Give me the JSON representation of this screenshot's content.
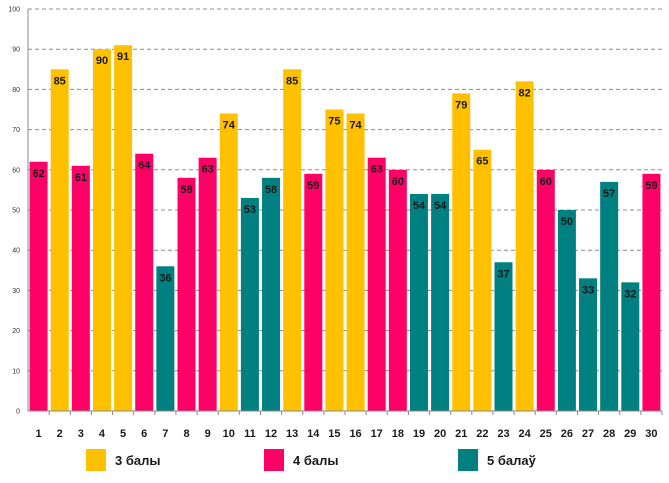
{
  "chart_data": {
    "type": "bar",
    "title": "",
    "xlabel": "",
    "ylabel": "",
    "ylim": [
      0,
      100
    ],
    "yticks": [
      0,
      10,
      20,
      30,
      40,
      50,
      60,
      70,
      80,
      90,
      100
    ],
    "grid": true,
    "legend_position": "bottom",
    "categories": [
      "1",
      "2",
      "3",
      "4",
      "5",
      "6",
      "7",
      "8",
      "9",
      "10",
      "11",
      "12",
      "13",
      "14",
      "15",
      "16",
      "17",
      "18",
      "19",
      "20",
      "21",
      "22",
      "23",
      "24",
      "25",
      "26",
      "27",
      "28",
      "29",
      "30"
    ],
    "values": [
      62,
      85,
      61,
      90,
      91,
      64,
      36,
      58,
      63,
      74,
      53,
      58,
      85,
      59,
      75,
      74,
      63,
      60,
      54,
      54,
      79,
      65,
      37,
      82,
      60,
      50,
      33,
      57,
      32,
      59
    ],
    "groups": [
      "4 балы",
      "3 балы",
      "4 балы",
      "3 балы",
      "3 балы",
      "4 балы",
      "5 балаў",
      "4 балы",
      "4 балы",
      "3 балы",
      "5 балаў",
      "5 балаў",
      "3 балы",
      "4 балы",
      "3 балы",
      "3 балы",
      "4 балы",
      "4 балы",
      "5 балаў",
      "5 балаў",
      "3 балы",
      "3 балы",
      "5 балаў",
      "3 балы",
      "4 балы",
      "5 балаў",
      "5 балаў",
      "5 балаў",
      "5 балаў",
      "4 балы"
    ],
    "legend": [
      {
        "name": "3 балы",
        "color": "#FFC000"
      },
      {
        "name": "4 балы",
        "color": "#FF0066"
      },
      {
        "name": "5 балаў",
        "color": "#008080"
      }
    ]
  }
}
